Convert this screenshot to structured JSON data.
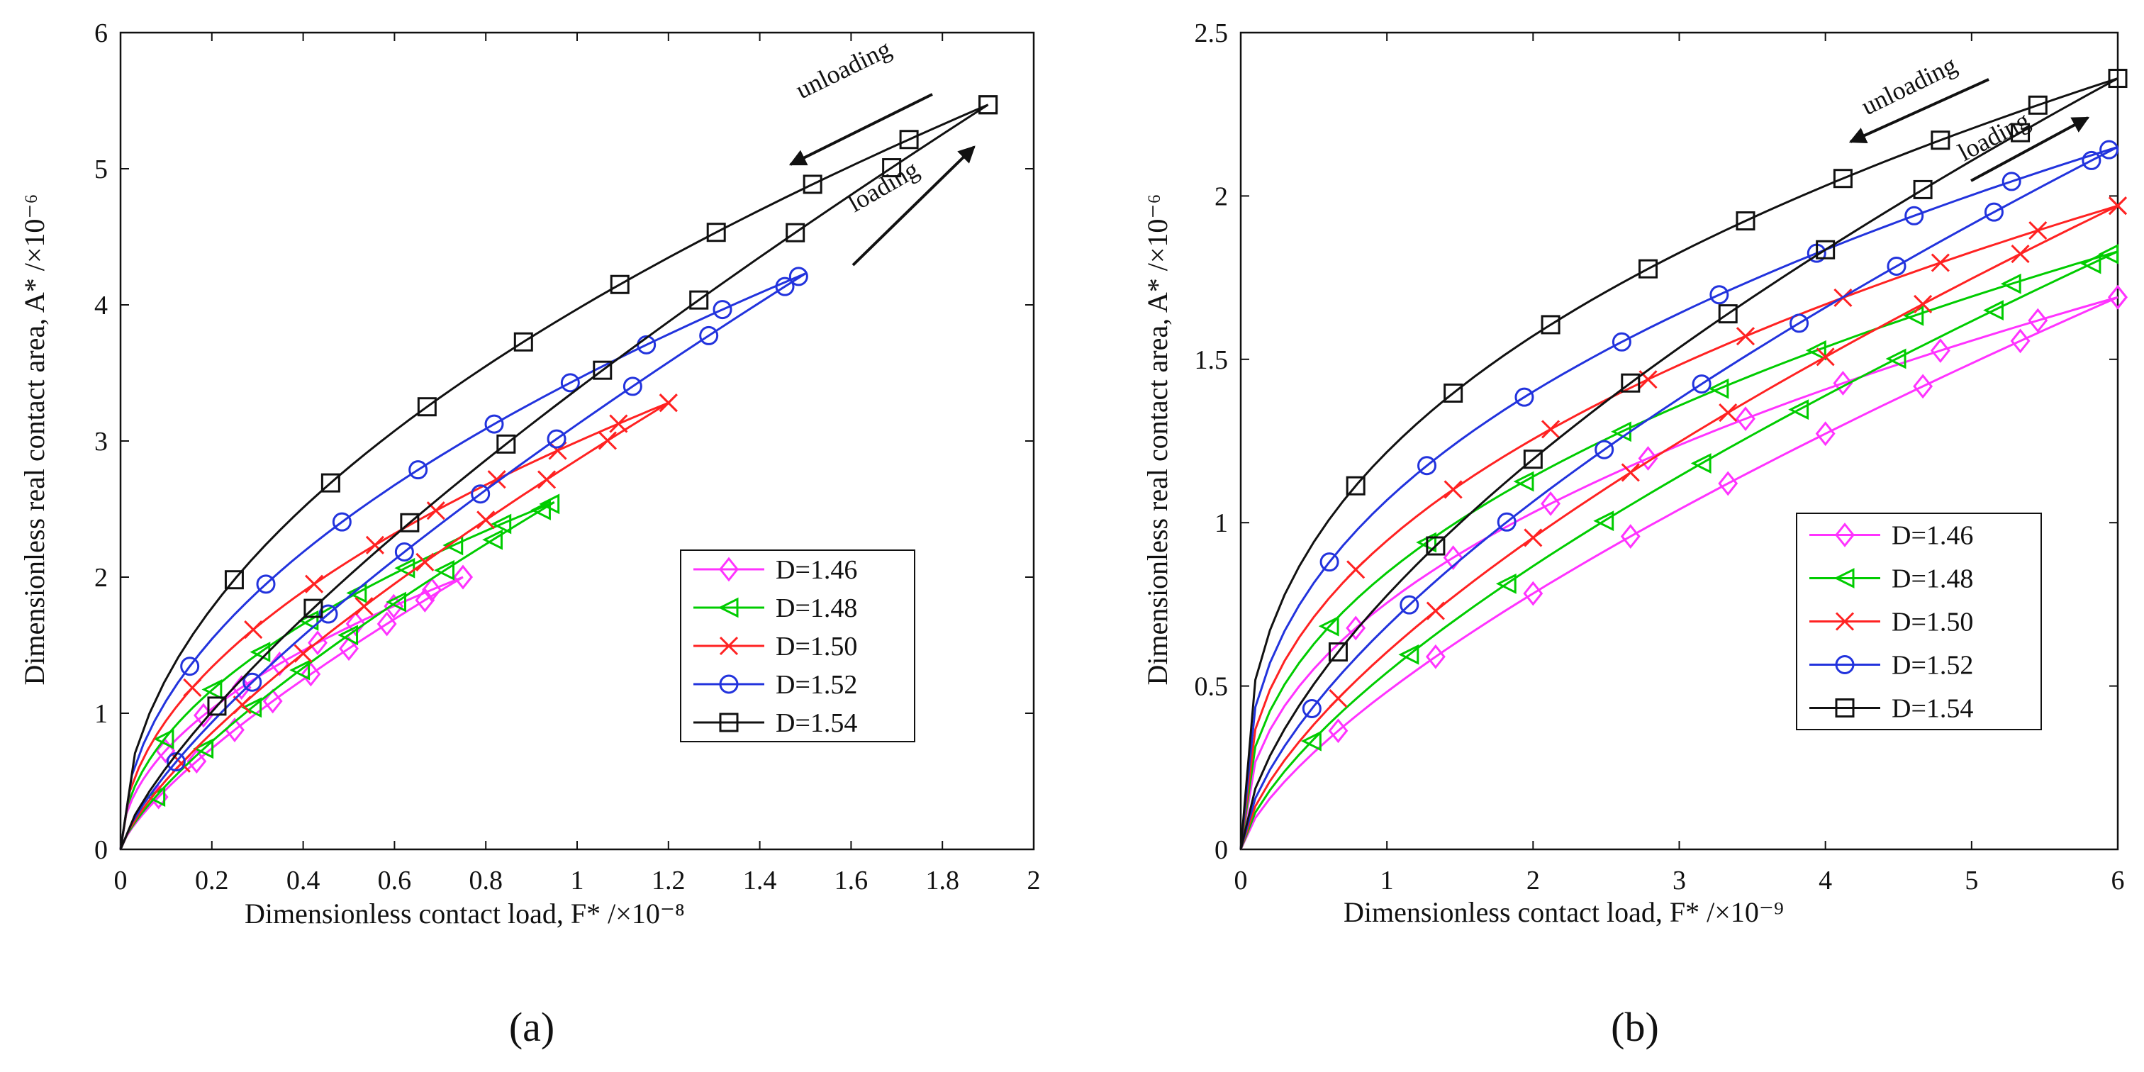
{
  "chart_data": [
    {
      "type": "line",
      "panel_label": "(a)",
      "xlabel": "Dimensionless contact load, F* /×10⁻⁸",
      "ylabel": "Dimensionless real contact area, A* /×10⁻⁶",
      "xlim": [
        0,
        2
      ],
      "ylim": [
        0,
        6
      ],
      "xticks": [
        0,
        0.2,
        0.4,
        0.6,
        0.8,
        1,
        1.2,
        1.4,
        1.6,
        1.8,
        2
      ],
      "xtick_labels": [
        "0",
        "0.2",
        "0.4",
        "0.6",
        "0.8",
        "1",
        "1.2",
        "1.4",
        "1.6",
        "1.8",
        "2"
      ],
      "yticks": [
        0,
        1,
        2,
        3,
        4,
        5,
        6
      ],
      "ytick_labels": [
        "0",
        "1",
        "2",
        "3",
        "4",
        "5",
        "6"
      ],
      "annotations": [
        "unloading",
        "loading"
      ],
      "legend": [
        "D=1.46",
        "D=1.48",
        "D=1.50",
        "D=1.52",
        "D=1.54"
      ],
      "series": [
        {
          "name": "D=1.46",
          "D": "1.46",
          "color": "#ff33ff",
          "marker": "diamond",
          "Fmax": 0.75,
          "Amax": 2.0,
          "upper_exp": 0.5,
          "lower_exp": 0.75
        },
        {
          "name": "D=1.48",
          "D": "1.48",
          "color": "#00cc00",
          "marker": "triangle-left",
          "Fmax": 0.95,
          "Amax": 2.55,
          "upper_exp": 0.5,
          "lower_exp": 0.75
        },
        {
          "name": "D=1.50",
          "D": "1.50",
          "color": "#ff2222",
          "marker": "x",
          "Fmax": 1.2,
          "Amax": 3.28,
          "upper_exp": 0.5,
          "lower_exp": 0.75
        },
        {
          "name": "D=1.52",
          "D": "1.52",
          "color": "#2233dd",
          "marker": "circle",
          "Fmax": 1.5,
          "Amax": 4.23,
          "upper_exp": 0.5,
          "lower_exp": 0.75
        },
        {
          "name": "D=1.54",
          "D": "1.54",
          "color": "#111111",
          "marker": "square",
          "Fmax": 1.9,
          "Amax": 5.47,
          "upper_exp": 0.5,
          "lower_exp": 0.75
        }
      ]
    },
    {
      "type": "line",
      "panel_label": "(b)",
      "xlabel": "Dimensionless contact load, F* /×10⁻⁹",
      "ylabel": "Dimensionless real contact area, A* /×10⁻⁶",
      "xlim": [
        0,
        6
      ],
      "ylim": [
        0,
        2.5
      ],
      "xticks": [
        0,
        1,
        2,
        3,
        4,
        5,
        6
      ],
      "xtick_labels": [
        "0",
        "1",
        "2",
        "3",
        "4",
        "5",
        "6"
      ],
      "yticks": [
        0,
        0.5,
        1,
        1.5,
        2,
        2.5
      ],
      "ytick_labels": [
        "0",
        "0.5",
        "1",
        "1.5",
        "2",
        "2.5"
      ],
      "annotations": [
        "unloading",
        "loading"
      ],
      "legend": [
        "D=1.46",
        "D=1.48",
        "D=1.50",
        "D=1.52",
        "D=1.54"
      ],
      "series": [
        {
          "name": "D=1.46",
          "D": "1.46",
          "color": "#ff33ff",
          "marker": "diamond",
          "Fmax": 6,
          "Amax": 1.69,
          "upper_exp": 0.45,
          "lower_exp": 0.7
        },
        {
          "name": "D=1.48",
          "D": "1.48",
          "color": "#00cc00",
          "marker": "triangle-left",
          "Fmax": 6,
          "Amax": 1.83,
          "upper_exp": 0.43,
          "lower_exp": 0.68
        },
        {
          "name": "D=1.50",
          "D": "1.50",
          "color": "#ff2222",
          "marker": "x",
          "Fmax": 6,
          "Amax": 1.97,
          "upper_exp": 0.41,
          "lower_exp": 0.66
        },
        {
          "name": "D=1.52",
          "D": "1.52",
          "color": "#2233dd",
          "marker": "circle",
          "Fmax": 6,
          "Amax": 2.15,
          "upper_exp": 0.39,
          "lower_exp": 0.64
        },
        {
          "name": "D=1.54",
          "D": "1.54",
          "color": "#111111",
          "marker": "square",
          "Fmax": 6,
          "Amax": 2.36,
          "upper_exp": 0.37,
          "lower_exp": 0.62
        }
      ]
    }
  ]
}
